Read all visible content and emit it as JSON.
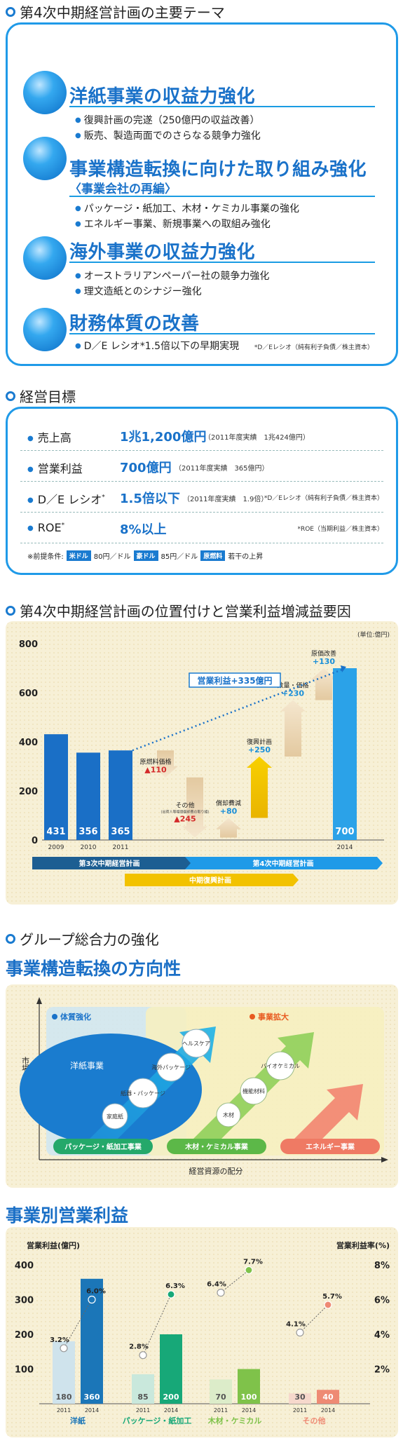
{
  "sec1": {
    "heading": "第4次中期経営計画の主要テーマ",
    "themes": [
      {
        "title": "洋紙事業の収益力強化",
        "sub": "",
        "bullets": [
          "復興計画の完遂（250億円の収益改善）",
          "販売、製造両面でのさらなる競争力強化"
        ],
        "note": ""
      },
      {
        "title": "事業構造転換に向けた取り組み強化",
        "sub": "〈事業会社の再編〉",
        "bullets": [
          "パッケージ・紙加工、木材・ケミカル事業の強化",
          "エネルギー事業、新規事業への取組み強化"
        ],
        "note": ""
      },
      {
        "title": "海外事業の収益力強化",
        "sub": "",
        "bullets": [
          "オーストラリアンペーパー社の競争力強化",
          "理文造紙とのシナジー強化"
        ],
        "note": ""
      },
      {
        "title": "財務体質の改善",
        "sub": "",
        "bullets": [
          "D／E レシオ*1.5倍以下の早期実現"
        ],
        "note": "*D／Eレシオ（純有利子負債／株主資本）"
      }
    ]
  },
  "sec2": {
    "heading": "経営目標",
    "rows": [
      {
        "label": "売上高",
        "sup": "",
        "value": "1兆1,200億円",
        "detail": "（2011年度実績　1兆424億円）",
        "note": ""
      },
      {
        "label": "営業利益",
        "sup": "",
        "value": "700億円",
        "detail": "（2011年度実績　365億円）",
        "note": ""
      },
      {
        "label": "D／E レシオ",
        "sup": "*",
        "value": "1.5倍以下",
        "detail": "（2011年度実績　1.9倍）",
        "note": "*D／Eレシオ（純有利子負債／株主資本）"
      },
      {
        "label": "ROE",
        "sup": "*",
        "value": "8%以上",
        "detail": "",
        "note": "*ROE（当期利益／株主資本）"
      }
    ],
    "premise_label": "※前提条件:",
    "premise_items": [
      {
        "tag": "米ドル",
        "text": "80円／ドル"
      },
      {
        "tag": "豪ドル",
        "text": "85円／ドル"
      },
      {
        "tag": "原燃料",
        "text": "若干の上昇"
      }
    ]
  },
  "sec3": {
    "heading": "第4次中期経営計画の位置付けと営業利益増減益要因",
    "chart_data": {
      "type": "bar",
      "unit": "(単位:億円)",
      "categories": [
        "2009",
        "2010",
        "2011",
        "2014"
      ],
      "values": [
        431,
        356,
        365,
        700
      ],
      "ylim": [
        0,
        800
      ],
      "yticks": [
        0,
        200,
        400,
        600,
        800
      ],
      "target_label": "営業利益+335億円",
      "factors": [
        {
          "label": "原燃料価格",
          "value": "▲110",
          "direction": "down"
        },
        {
          "label": "その他",
          "sublabel": "(出荷人等増価償却費の取り組)",
          "value": "▲245",
          "direction": "down"
        },
        {
          "label": "償却費減",
          "value": "+80",
          "direction": "up"
        },
        {
          "label": "復興計画",
          "value": "+250",
          "direction": "up"
        },
        {
          "label": "数量・価格",
          "value": "+230",
          "direction": "up"
        },
        {
          "label": "原価改善",
          "value": "+130",
          "direction": "up"
        }
      ],
      "bands": [
        "第3次中期経営計画",
        "第4次中期経営計画",
        "中期復興計画"
      ]
    }
  },
  "sec4": {
    "heading": "グループ総合力の強化",
    "title": "事業構造転換の方向性",
    "y_axis": "市場の成長性",
    "x_axis": "経営資源の配分",
    "left_zone": "体質強化",
    "right_zone": "事業拡大",
    "bubbles": [
      "洋紙事業",
      "家庭紙",
      "紙器・パッケージ",
      "海外パッケージ",
      "ヘルスケア",
      "木材",
      "機能材料",
      "バイオケミカル"
    ],
    "pills": [
      "パッケージ・紙加工事業",
      "木材・ケミカル事業",
      "エネルギー事業"
    ]
  },
  "sec5": {
    "title": "事業別営業利益",
    "chart_data": {
      "type": "bar",
      "ylabel": "営業利益(億円)",
      "y2label": "営業利益率(%)",
      "ylim": [
        0,
        400
      ],
      "yticks": [
        100,
        200,
        300,
        400
      ],
      "y2ticks": [
        "2%",
        "4%",
        "6%",
        "8%"
      ],
      "groups": [
        {
          "name": "洋紙",
          "years": [
            "2011",
            "2014"
          ],
          "values": [
            180,
            360
          ],
          "rates": [
            "3.2%",
            "6.0%"
          ],
          "rate_values": [
            3.2,
            6.0
          ],
          "colors": [
            "#cfe3ec",
            "#1b76b8"
          ]
        },
        {
          "name": "パッケージ・紙加工",
          "years": [
            "2011",
            "2014"
          ],
          "values": [
            85,
            200
          ],
          "rates": [
            "2.8%",
            "6.3%"
          ],
          "rate_values": [
            2.8,
            6.3
          ],
          "colors": [
            "#c9e8dc",
            "#17a878"
          ]
        },
        {
          "name": "木材・ケミカル",
          "years": [
            "2011",
            "2014"
          ],
          "values": [
            70,
            100
          ],
          "rates": [
            "6.4%",
            "7.7%"
          ],
          "rate_values": [
            6.4,
            7.7
          ],
          "colors": [
            "#dcecc9",
            "#7fc24a"
          ]
        },
        {
          "name": "その他",
          "years": [
            "2011",
            "2014"
          ],
          "values": [
            30,
            40
          ],
          "rates": [
            "4.1%",
            "5.7%"
          ],
          "rate_values": [
            4.1,
            5.7
          ],
          "colors": [
            "#f6d8cc",
            "#ee8a74"
          ]
        }
      ]
    }
  }
}
